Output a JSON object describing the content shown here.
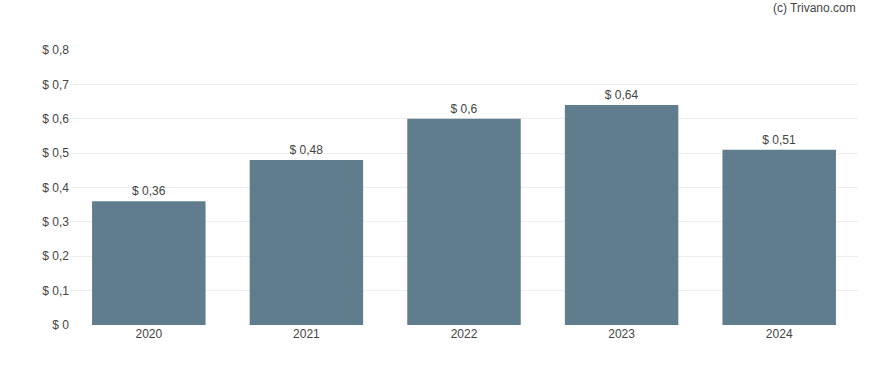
{
  "chart_data": {
    "type": "bar",
    "categories": [
      "2020",
      "2021",
      "2022",
      "2023",
      "2024"
    ],
    "values": [
      0.36,
      0.48,
      0.6,
      0.64,
      0.51
    ],
    "value_labels": [
      "$ 0,36",
      "$ 0,48",
      "$ 0,6",
      "$ 0,64",
      "$ 0,51"
    ],
    "data_labels": true,
    "color": "#5f7d8c",
    "ylim": [
      0,
      0.8
    ],
    "yticks": [
      {
        "value": 0,
        "label": "$ 0"
      },
      {
        "value": 0.1,
        "label": "$ 0,1"
      },
      {
        "value": 0.2,
        "label": "$ 0,2"
      },
      {
        "value": 0.3,
        "label": "$ 0,3"
      },
      {
        "value": 0.4,
        "label": "$ 0,4"
      },
      {
        "value": 0.5,
        "label": "$ 0,5"
      },
      {
        "value": 0.6,
        "label": "$ 0,6"
      },
      {
        "value": 0.7,
        "label": "$ 0,7"
      },
      {
        "value": 0.8,
        "label": "$ 0,8"
      }
    ],
    "grid": true,
    "annotations": [
      "(c) Trivano.com"
    ]
  }
}
